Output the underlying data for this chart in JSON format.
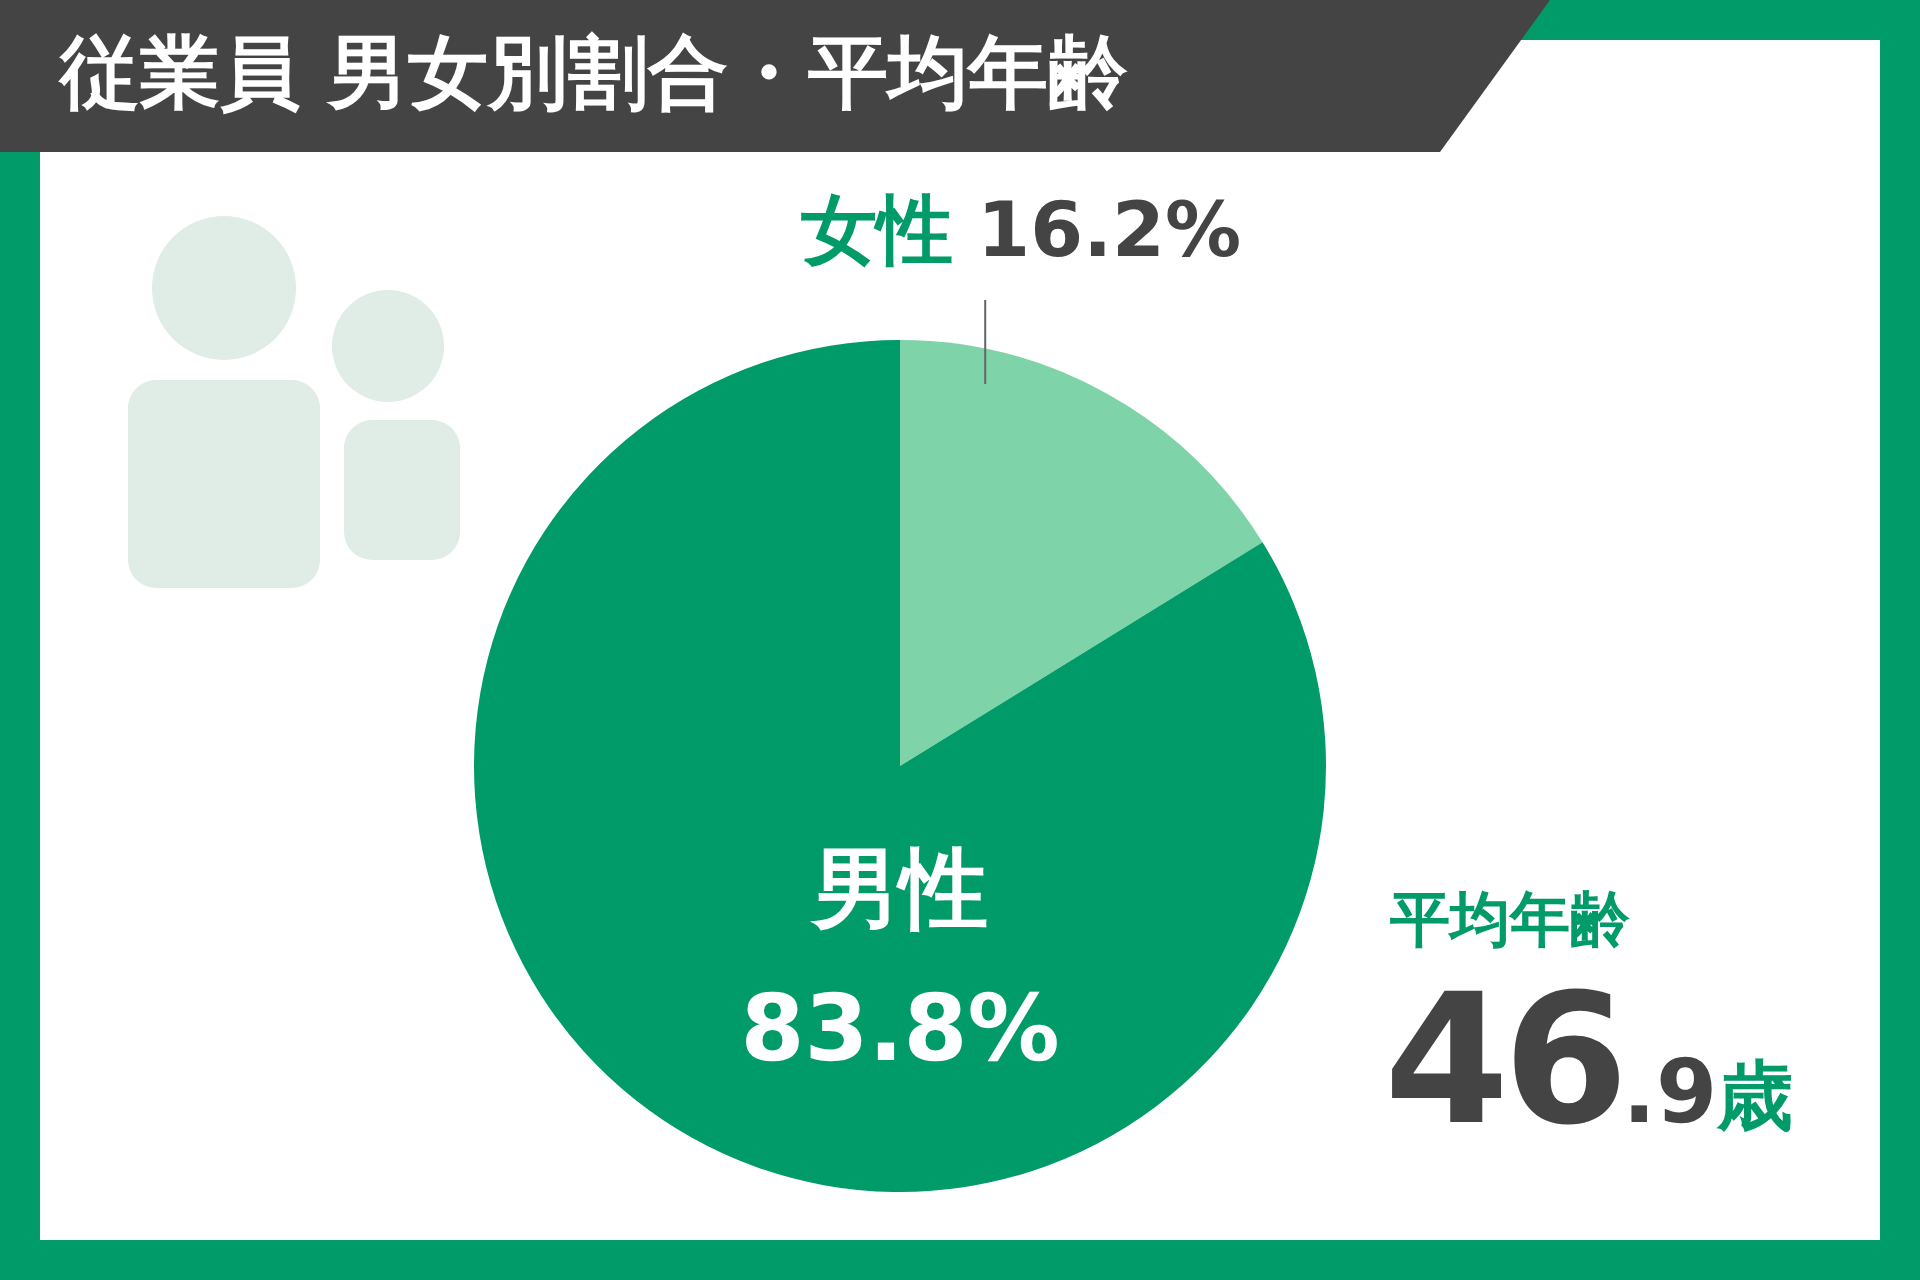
{
  "chart_data": {
    "type": "pie",
    "title": "従業員 男女別割合・平均年齢",
    "categories": [
      "女性",
      "男性"
    ],
    "values": [
      16.2,
      83.8
    ],
    "colors": [
      "#7fd3a8",
      "#009b68"
    ],
    "value_labels": [
      "16.2%",
      "83.8%"
    ],
    "annotations": [
      "平均年齢",
      "46.9歳"
    ],
    "legend": false
  }
}
